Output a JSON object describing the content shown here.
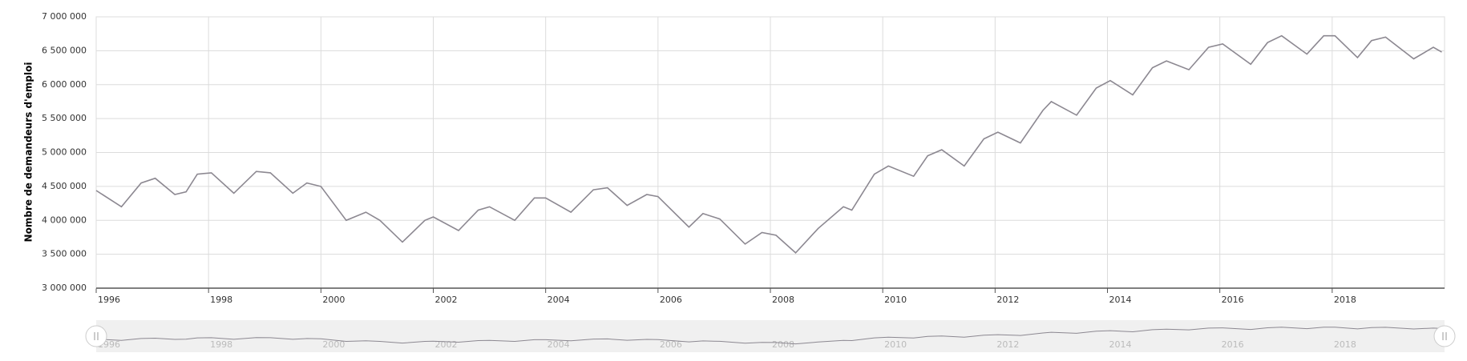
{
  "chart_data": {
    "type": "line",
    "y_axis_label": "Nombre de demandeurs d'emploi",
    "x": [
      1996.0,
      1996.45,
      1996.8,
      1997.05,
      1997.4,
      1997.6,
      1997.8,
      1998.05,
      1998.45,
      1998.85,
      1999.1,
      1999.5,
      1999.75,
      2000.0,
      2000.45,
      2000.8,
      2001.05,
      2001.45,
      2001.85,
      2002.0,
      2002.45,
      2002.8,
      2003.0,
      2003.45,
      2003.8,
      2004.0,
      2004.45,
      2004.85,
      2005.1,
      2005.45,
      2005.8,
      2006.0,
      2006.55,
      2006.8,
      2007.1,
      2007.55,
      2007.85,
      2008.1,
      2008.45,
      2008.85,
      2009.3,
      2009.45,
      2009.85,
      2010.1,
      2010.55,
      2010.8,
      2011.05,
      2011.45,
      2011.8,
      2012.05,
      2012.45,
      2012.85,
      2013.0,
      2013.45,
      2013.8,
      2014.05,
      2014.45,
      2014.8,
      2015.05,
      2015.45,
      2015.8,
      2016.05,
      2016.55,
      2016.85,
      2017.1,
      2017.55,
      2017.85,
      2018.05,
      2018.45,
      2018.7,
      2018.95,
      2019.45,
      2019.8,
      2019.95
    ],
    "series": [
      {
        "name": "Demandeurs d'emploi",
        "color": "#8c8891",
        "values": [
          4440000,
          4200000,
          4550000,
          4620000,
          4380000,
          4420000,
          4680000,
          4700000,
          4400000,
          4720000,
          4700000,
          4400000,
          4550000,
          4500000,
          4000000,
          4120000,
          4000000,
          3680000,
          4000000,
          4050000,
          3850000,
          4150000,
          4200000,
          4000000,
          4330000,
          4330000,
          4120000,
          4450000,
          4480000,
          4220000,
          4380000,
          4350000,
          3900000,
          4100000,
          4020000,
          3650000,
          3820000,
          3780000,
          3520000,
          3880000,
          4200000,
          4150000,
          4680000,
          4800000,
          4650000,
          4950000,
          5040000,
          4800000,
          5200000,
          5300000,
          5140000,
          5620000,
          5750000,
          5550000,
          5950000,
          6060000,
          5850000,
          6250000,
          6350000,
          6220000,
          6550000,
          6600000,
          6300000,
          6620000,
          6720000,
          6450000,
          6720000,
          6720000,
          6400000,
          6650000,
          6700000,
          6380000,
          6550000,
          6480000
        ]
      }
    ],
    "xlim": [
      1996,
      2020
    ],
    "xticks": [
      1996,
      1998,
      2000,
      2002,
      2004,
      2006,
      2008,
      2010,
      2012,
      2014,
      2016,
      2018
    ],
    "ylim": [
      3000000,
      7000000
    ],
    "yticks": [
      {
        "value": 3000000,
        "label": "3 000 000"
      },
      {
        "value": 3500000,
        "label": "3 500 000"
      },
      {
        "value": 4000000,
        "label": "4 000 000"
      },
      {
        "value": 4500000,
        "label": "4 500 000"
      },
      {
        "value": 5000000,
        "label": "5 000 000"
      },
      {
        "value": 5500000,
        "label": "5 500 000"
      },
      {
        "value": 6000000,
        "label": "6 000 000"
      },
      {
        "value": 6500000,
        "label": "6 500 000"
      },
      {
        "value": 7000000,
        "label": "7 000 000"
      }
    ],
    "grid": true
  }
}
